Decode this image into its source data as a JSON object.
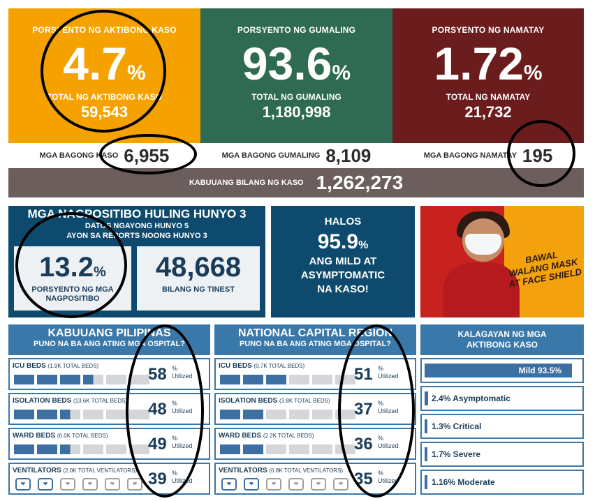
{
  "colors": {
    "active": "#f5a200",
    "recovered": "#2f6b52",
    "deaths": "#6b1d1e",
    "navy": "#0e4a6e",
    "panel_blue": "#3a78a9"
  },
  "top": {
    "active": {
      "title": "PORSYENTO NG AKTIBONG KASO",
      "percent": "4.7",
      "pct_sign": "%",
      "total_label": "TOTAL NG AKTIBONG KASO",
      "total": "59,543"
    },
    "recovered": {
      "title": "PORSYENTO NG GUMALING",
      "percent": "93.6",
      "pct_sign": "%",
      "total_label": "TOTAL NG GUMALING",
      "total": "1,180,998"
    },
    "deaths": {
      "title": "PORSYENTO NG NAMATAY",
      "percent": "1.72",
      "pct_sign": "%",
      "total_label": "TOTAL NG NAMATAY",
      "total": "21,732"
    }
  },
  "new_cases": {
    "label": "MGA BAGONG KASO",
    "value": "6,955"
  },
  "new_recovered": {
    "label": "MGA BAGONG GUMALING",
    "value": "8,109"
  },
  "new_deaths": {
    "label": "MGA BAGONG NAMATAY",
    "value": "195"
  },
  "total_cases": {
    "label": "KABUUANG BILANG NG KASO",
    "value": "1,262,273"
  },
  "positivity": {
    "title": "MGA NAGPOSITIBO HULING HUNYO 3",
    "sub1": "DATOS NGAYONG HUNYO 5",
    "sub2": "AYON SA REPORTS NOONG HUNYO 3",
    "rate": "13.2",
    "pct_sign": "%",
    "rate_label": "PORSYENTO NG MGA NAGPOSITIBO",
    "tested": "48,668",
    "tested_label": "BILANG NG TINEST"
  },
  "halos": {
    "line1": "HALOS",
    "value": "95.9",
    "pct_sign": "%",
    "line2": "ANG MILD AT",
    "line3": "ASYMPTOMATIC",
    "line4": "NA KASO!"
  },
  "ad": {
    "text1": "BAWAL",
    "text2": "WALANG MASK",
    "text3": "AT FACE SHIELD"
  },
  "hospitals": [
    {
      "title": "KABUUANG PILIPINAS",
      "subtitle": "PUNO NA BA ANG ATING MGA OSPITAL?",
      "rows": [
        {
          "name": "ICU BEDS",
          "total": "(1.9K TOTAL BEDS)",
          "value": "58",
          "unit": "%",
          "utilized": "Utilized",
          "utilization": 0.58
        },
        {
          "name": "ISOLATION BEDS",
          "total": "(13.6K TOTAL BEDS)",
          "value": "48",
          "unit": "%",
          "utilized": "Utilized",
          "utilization": 0.48
        },
        {
          "name": "WARD BEDS",
          "total": "(6.0K TOTAL BEDS)",
          "value": "49",
          "unit": "%",
          "utilized": "Utilized",
          "utilization": 0.49
        },
        {
          "name": "VENTILATORS",
          "total": "(2.0K TOTAL VENTILATORS)",
          "value": "39",
          "unit": "%",
          "utilized": "Utilized",
          "utilization": 0.39
        }
      ]
    },
    {
      "title": "NATIONAL CAPITAL REGION",
      "subtitle": "PUNO NA BA ANG ATING MGA OSPITAL?",
      "rows": [
        {
          "name": "ICU BEDS",
          "total": "(0.7K TOTAL BEDS)",
          "value": "51",
          "unit": "%",
          "utilized": "Utilized",
          "utilization": 0.51
        },
        {
          "name": "ISOLATION BEDS",
          "total": "(3.8K TOTAL BEDS)",
          "value": "37",
          "unit": "%",
          "utilized": "Utilized",
          "utilization": 0.37
        },
        {
          "name": "WARD BEDS",
          "total": "(2.2K TOTAL BEDS)",
          "value": "36",
          "unit": "%",
          "utilized": "Utilized",
          "utilization": 0.36
        },
        {
          "name": "VENTILATORS",
          "total": "(0.8K TOTAL VENTILATORS)",
          "value": "35",
          "unit": "%",
          "utilized": "Utilized",
          "utilization": 0.35
        }
      ]
    }
  ],
  "kalagayan": {
    "title1": "KALAGAYAN NG MGA",
    "title2": "AKTIBONG KASO",
    "items": [
      {
        "label": "Mild 93.5%",
        "share": 0.935
      },
      {
        "label": "2.4% Asymptomatic",
        "share": 0.024
      },
      {
        "label": "1.3% Critical",
        "share": 0.013
      },
      {
        "label": "1.7% Severe",
        "share": 0.017
      },
      {
        "label": "1.16% Moderate",
        "share": 0.0116
      }
    ]
  }
}
